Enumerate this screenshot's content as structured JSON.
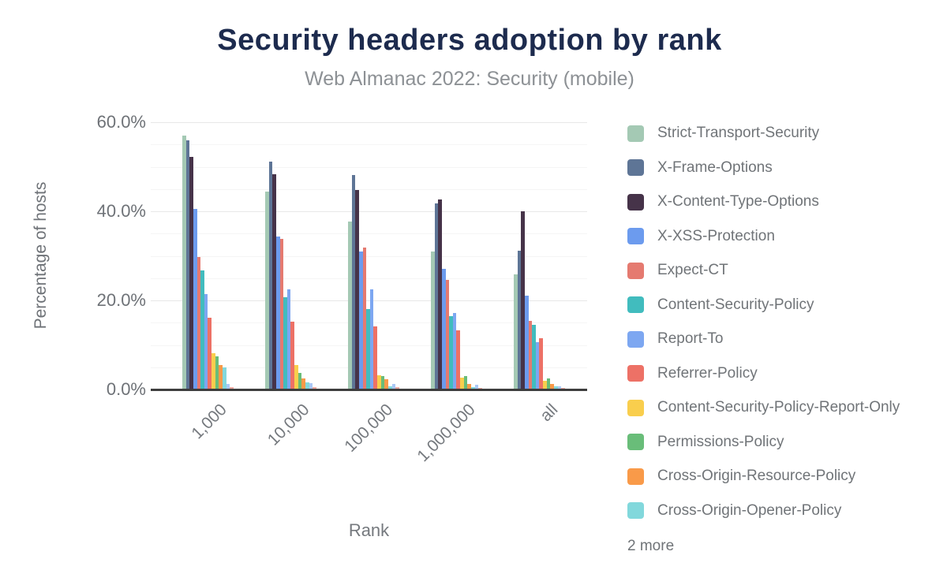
{
  "title": "Security headers adoption by rank",
  "subtitle": "Web Almanac 2022: Security (mobile)",
  "legend_more_label": "2 more",
  "colors": {
    "title_text": "#1d2b4e",
    "subtitle_text": "#8d9195",
    "axis_text": "#6e7277",
    "axis_line": "#3e3e3e",
    "grid_major": "#e8e8e8",
    "grid_minor": "#f5f5f5",
    "background": "#ffffff"
  },
  "chart_data": {
    "type": "bar",
    "title": "Security headers adoption by rank",
    "subtitle": "Web Almanac 2022: Security (mobile)",
    "xlabel": "Rank",
    "ylabel": "Percentage of hosts",
    "categories": [
      "1,000",
      "10,000",
      "100,000",
      "1,000,000",
      "all"
    ],
    "ylim": [
      0,
      60
    ],
    "ytick_values": [
      0,
      20,
      40,
      60
    ],
    "ytick_labels": [
      "0.0%",
      "20.0%",
      "40.0%",
      "60.0%"
    ],
    "minor_grid_step": 5,
    "grid": true,
    "legend_position": "right",
    "value_unit": "percent of hosts",
    "series": [
      {
        "name": "Strict-Transport-Security",
        "color": "#a4c9b4",
        "in_legend": true,
        "values": [
          56.8,
          44.3,
          37.5,
          30.8,
          25.6
        ]
      },
      {
        "name": "X-Frame-Options",
        "color": "#5e7596",
        "in_legend": true,
        "values": [
          55.7,
          51.0,
          47.9,
          41.6,
          30.9
        ]
      },
      {
        "name": "X-Content-Type-Options",
        "color": "#463349",
        "in_legend": true,
        "values": [
          52.0,
          48.2,
          44.6,
          42.4,
          39.8
        ]
      },
      {
        "name": "X-XSS-Protection",
        "color": "#6c9bee",
        "in_legend": true,
        "values": [
          40.4,
          34.2,
          30.8,
          26.9,
          20.8
        ]
      },
      {
        "name": "Expect-CT",
        "color": "#e57a70",
        "in_legend": true,
        "values": [
          29.5,
          33.6,
          31.6,
          24.4,
          15.2
        ]
      },
      {
        "name": "Content-Security-Policy",
        "color": "#41bcbe",
        "in_legend": true,
        "values": [
          26.6,
          20.6,
          17.8,
          16.3,
          14.3
        ]
      },
      {
        "name": "Report-To",
        "color": "#7da7f1",
        "in_legend": true,
        "values": [
          21.3,
          22.3,
          22.3,
          17.0,
          10.5
        ]
      },
      {
        "name": "Referrer-Policy",
        "color": "#ed7166",
        "in_legend": true,
        "values": [
          15.9,
          15.1,
          14.0,
          13.1,
          11.3
        ]
      },
      {
        "name": "Content-Security-Policy-Report-Only",
        "color": "#f9ce4d",
        "in_legend": true,
        "values": [
          8.0,
          5.3,
          3.1,
          2.4,
          1.8
        ]
      },
      {
        "name": "Permissions-Policy",
        "color": "#69bd79",
        "in_legend": true,
        "values": [
          7.3,
          3.5,
          2.8,
          2.9,
          2.3
        ]
      },
      {
        "name": "Cross-Origin-Resource-Policy",
        "color": "#f99a49",
        "in_legend": true,
        "values": [
          5.4,
          2.3,
          2.1,
          1.1,
          1.1
        ]
      },
      {
        "name": "Cross-Origin-Opener-Policy",
        "color": "#82d8dc",
        "in_legend": true,
        "values": [
          4.8,
          1.5,
          0.6,
          0.4,
          0.5
        ]
      },
      {
        "name": "",
        "color": "#abc8f7",
        "in_legend": false,
        "values": [
          1.1,
          1.2,
          1.0,
          0.8,
          0.6
        ]
      },
      {
        "name": "",
        "color": "#f5aca4",
        "in_legend": false,
        "values": [
          0.4,
          0.3,
          0.3,
          0.2,
          0.2
        ]
      }
    ]
  }
}
